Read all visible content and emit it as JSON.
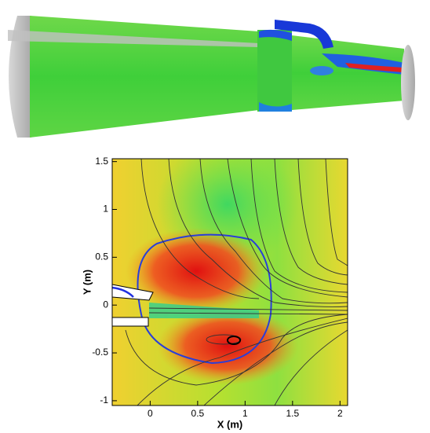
{
  "chart_data": {
    "type": "contour",
    "xlabel": "X (m)",
    "ylabel": "Y (m)",
    "xlim": [
      -0.4,
      2.08
    ],
    "ylim": [
      -1.05,
      1.53
    ],
    "xticks": [
      0,
      0.5,
      1,
      1.5,
      2
    ],
    "yticks": [
      -1,
      -0.5,
      0,
      0.5,
      1,
      1.5
    ]
  }
}
